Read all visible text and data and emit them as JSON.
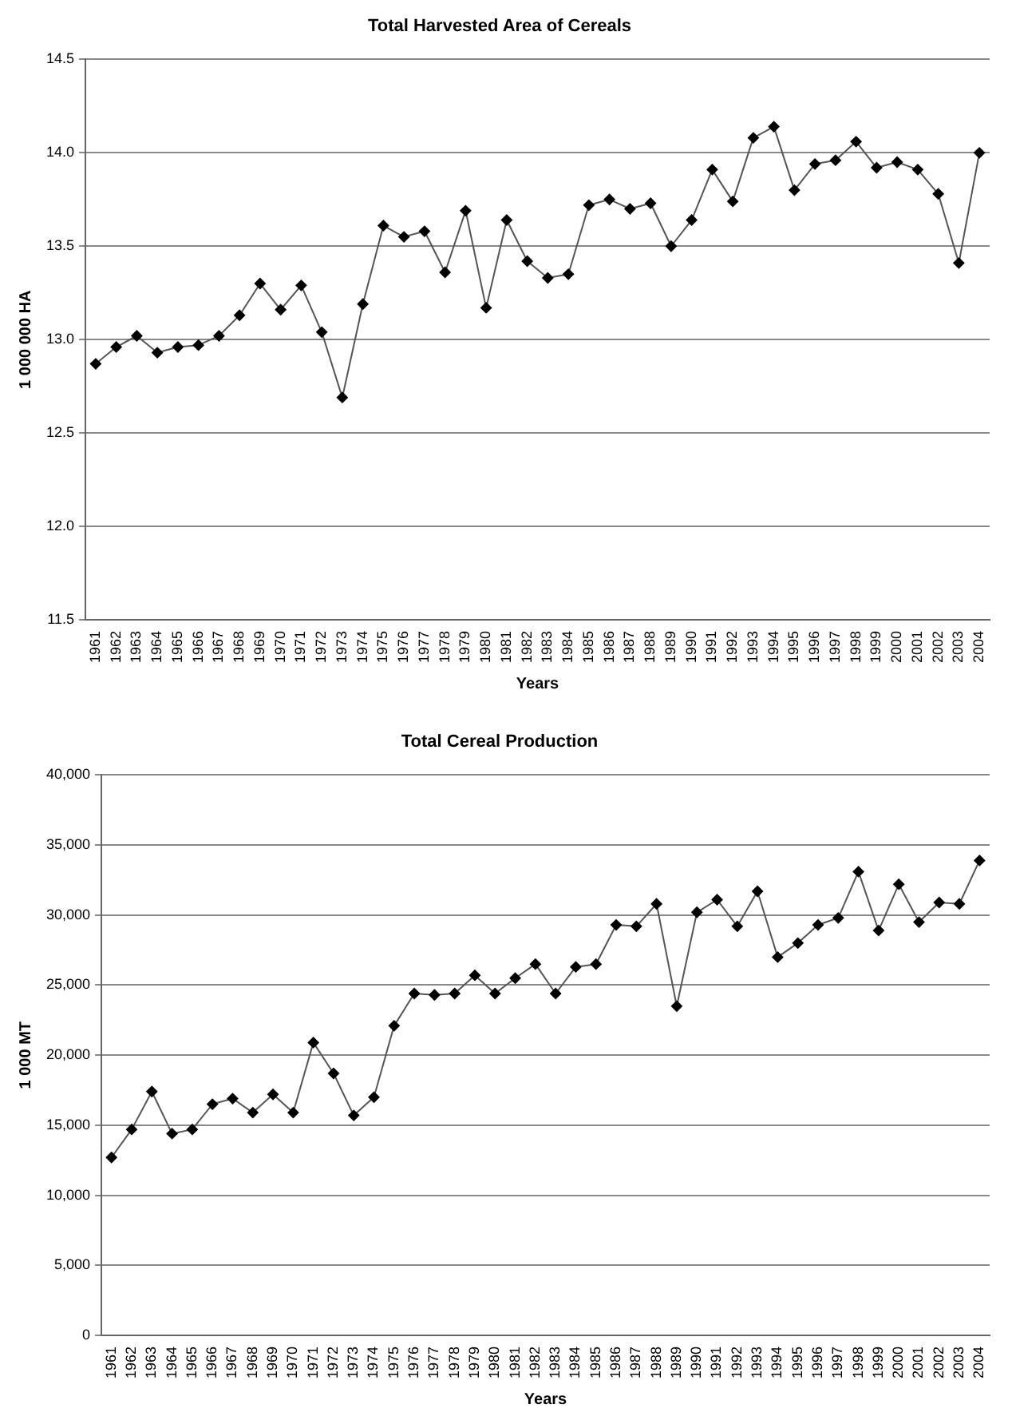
{
  "chart_data": [
    {
      "type": "line",
      "title": "Total Harvested Area of Cereals",
      "xlabel": "Years",
      "ylabel": "1 000 000 HA",
      "categories": [
        "1961",
        "1962",
        "1963",
        "1964",
        "1965",
        "1966",
        "1967",
        "1968",
        "1969",
        "1970",
        "1971",
        "1972",
        "1973",
        "1974",
        "1975",
        "1976",
        "1977",
        "1978",
        "1979",
        "1980",
        "1981",
        "1982",
        "1983",
        "1984",
        "1985",
        "1986",
        "1987",
        "1988",
        "1989",
        "1990",
        "1991",
        "1992",
        "1993",
        "1994",
        "1995",
        "1996",
        "1997",
        "1998",
        "1999",
        "2000",
        "2001",
        "2002",
        "2003",
        "2004"
      ],
      "series": [
        {
          "color": "#000000",
          "values": [
            12.87,
            12.96,
            13.02,
            12.93,
            12.96,
            12.97,
            13.02,
            13.13,
            13.3,
            13.16,
            13.29,
            13.04,
            12.69,
            13.19,
            13.61,
            13.55,
            13.58,
            13.36,
            13.69,
            13.17,
            13.64,
            13.42,
            13.33,
            13.35,
            13.72,
            13.75,
            13.7,
            13.73,
            13.5,
            13.64,
            13.91,
            13.74,
            14.08,
            14.14,
            13.8,
            13.94,
            13.96,
            14.06,
            13.92,
            13.95,
            13.91,
            13.78,
            13.41,
            14.0
          ]
        }
      ],
      "ylim": [
        11.5,
        14.5
      ],
      "yticks": [
        11.5,
        {
          "value": 12,
          "label": "12.0"
        },
        12.5,
        {
          "value": 13,
          "label": "13.0"
        },
        13.5,
        {
          "value": 14,
          "label": "14.0"
        },
        14.5
      ],
      "grid": "y",
      "legend": false,
      "marker": "diamond",
      "line_style": "solid"
    },
    {
      "type": "line",
      "title": "Total Cereal Production",
      "xlabel": "Years",
      "ylabel": "1 000 MT",
      "categories": [
        "1961",
        "1962",
        "1963",
        "1964",
        "1965",
        "1966",
        "1967",
        "1968",
        "1969",
        "1970",
        "1971",
        "1972",
        "1973",
        "1974",
        "1975",
        "1976",
        "1977",
        "1978",
        "1979",
        "1980",
        "1981",
        "1982",
        "1983",
        "1984",
        "1985",
        "1986",
        "1987",
        "1988",
        "1989",
        "1990",
        "1991",
        "1992",
        "1993",
        "1994",
        "1995",
        "1996",
        "1997",
        "1998",
        "1999",
        "2000",
        "2001",
        "2002",
        "2003",
        "2004"
      ],
      "series": [
        {
          "color": "#000000",
          "values": [
            12700,
            14700,
            17400,
            14400,
            14700,
            16500,
            16900,
            15900,
            17200,
            15900,
            20900,
            18700,
            15700,
            17000,
            22100,
            24400,
            24300,
            24400,
            25700,
            24400,
            25500,
            26500,
            24400,
            26300,
            26500,
            29300,
            29200,
            30800,
            23500,
            30200,
            31100,
            29200,
            31700,
            27000,
            28000,
            29300,
            29800,
            33100,
            28900,
            32200,
            29500,
            30900,
            30800,
            33900
          ]
        }
      ],
      "ylim": [
        0,
        40000
      ],
      "yticks": [
        0,
        {
          "value": 5000,
          "label": "5,000"
        },
        {
          "value": 10000,
          "label": "10,000"
        },
        {
          "value": 15000,
          "label": "15,000"
        },
        {
          "value": 20000,
          "label": "20,000"
        },
        {
          "value": 25000,
          "label": "25,000"
        },
        {
          "value": 30000,
          "label": "30,000"
        },
        {
          "value": 35000,
          "label": "35,000"
        },
        {
          "value": 40000,
          "label": "40,000"
        }
      ],
      "grid": "y",
      "legend": false,
      "marker": "diamond",
      "line_style": "solid"
    }
  ]
}
